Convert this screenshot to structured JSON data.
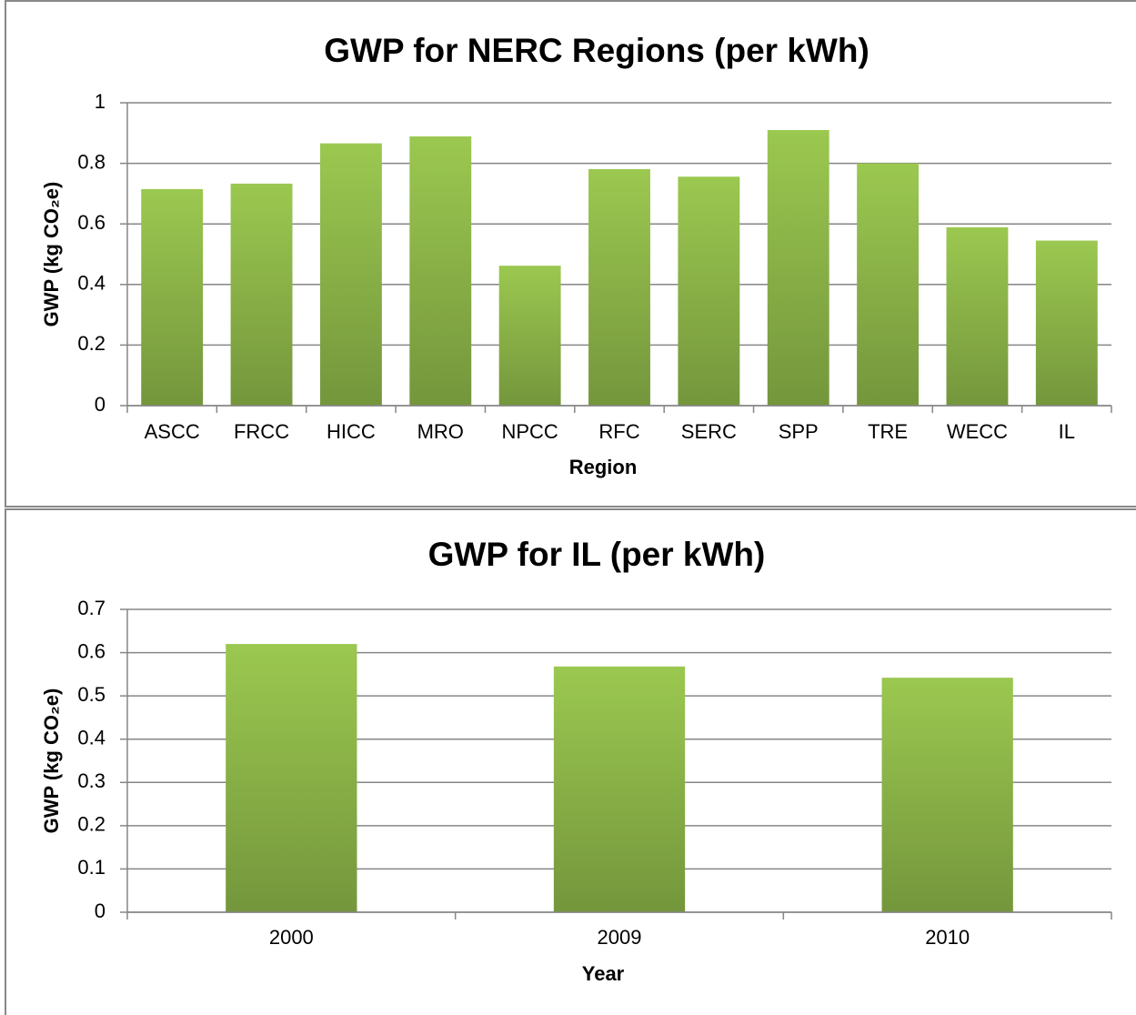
{
  "chart_data": [
    {
      "type": "bar",
      "title": "GWP for NERC Regions (per kWh)",
      "x_label": "Region",
      "y_label": "GWP (kg CO₂e)",
      "categories": [
        "ASCC",
        "FRCC",
        "HICC",
        "MRO",
        "NPCC",
        "RFC",
        "SERC",
        "SPP",
        "TRE",
        "WECC",
        "IL"
      ],
      "values": [
        0.715,
        0.733,
        0.866,
        0.889,
        0.462,
        0.781,
        0.756,
        0.91,
        0.8,
        0.589,
        0.545
      ],
      "color": "#9bc850",
      "ylim": [
        0,
        1
      ],
      "yticks": [
        0,
        0.2,
        0.4,
        0.6,
        0.8,
        1
      ],
      "grid": true
    },
    {
      "type": "bar",
      "title": "GWP for IL (per kWh)",
      "x_label": "Year",
      "y_label": "GWP (kg CO₂e)",
      "categories": [
        "2000",
        "2009",
        "2010"
      ],
      "values": [
        0.62,
        0.568,
        0.542
      ],
      "color": "#9bc850",
      "ylim": [
        0,
        0.7
      ],
      "yticks": [
        0,
        0.1,
        0.2,
        0.3,
        0.4,
        0.5,
        0.6,
        0.7
      ],
      "grid": true
    }
  ]
}
